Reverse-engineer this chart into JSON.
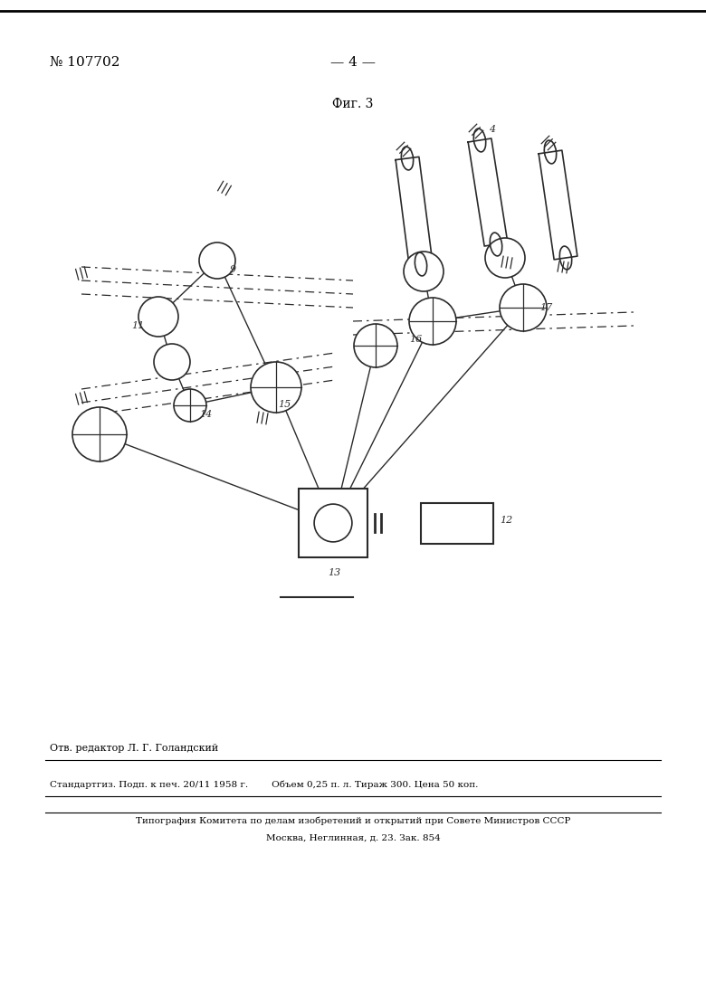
{
  "bg_color": "#ffffff",
  "title_top_left": "№ 107702",
  "title_center": "— 4 —",
  "fig_label": "Фиг. 3",
  "footer_line1": "Отв. редактор Л. Г. Голандский",
  "footer_line2": "Стандартгиз. Подп. к печ. 20/11 1958 г.        Объем 0,25 п. л. Тираж 300. Цена 50 коп.",
  "footer_line3": "Типография Комитета по делам изобретений и открытий при Совете Министров СССР",
  "footer_line4": "Москва, Неглинная, д. 23. Зак. 854"
}
